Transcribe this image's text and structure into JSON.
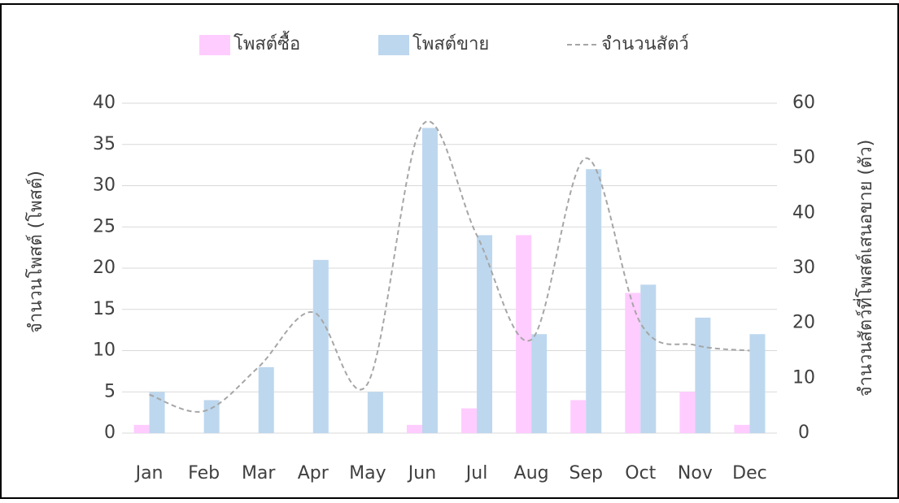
{
  "chart_data": {
    "type": "bar",
    "categories": [
      "Jan",
      "Feb",
      "Mar",
      "Apr",
      "May",
      "Jun",
      "Jul",
      "Aug",
      "Sep",
      "Oct",
      "Nov",
      "Dec"
    ],
    "series": [
      {
        "name": "โพสต์ซื้อ",
        "color": "#ffccff",
        "values": [
          1,
          0,
          0,
          0,
          0,
          1,
          3,
          24,
          4,
          17,
          5,
          1
        ]
      },
      {
        "name": "โพสต์ขาย",
        "color": "#bdd7ee",
        "values": [
          5,
          4,
          8,
          21,
          5,
          37,
          24,
          12,
          32,
          18,
          14,
          12
        ]
      },
      {
        "name": "จำนวนสัตว์",
        "color": "#a6a6a6",
        "type": "line",
        "axis": "y2",
        "values": [
          7,
          4,
          12,
          22,
          9,
          56,
          36,
          17,
          50,
          20,
          16,
          15
        ]
      }
    ],
    "ylabel": "จำนวนโพสต์ (โพสต์)",
    "y2label": "จำนวนสัตว์ที่โพสต์เสนอขาย (ตัว)",
    "ylim": [
      0,
      40
    ],
    "yticks": [
      0,
      5,
      10,
      15,
      20,
      25,
      30,
      35,
      40
    ],
    "y2lim": [
      0,
      60
    ],
    "y2ticks": [
      0,
      10,
      20,
      30,
      40,
      50,
      60
    ],
    "grid": true,
    "legend": "top"
  }
}
